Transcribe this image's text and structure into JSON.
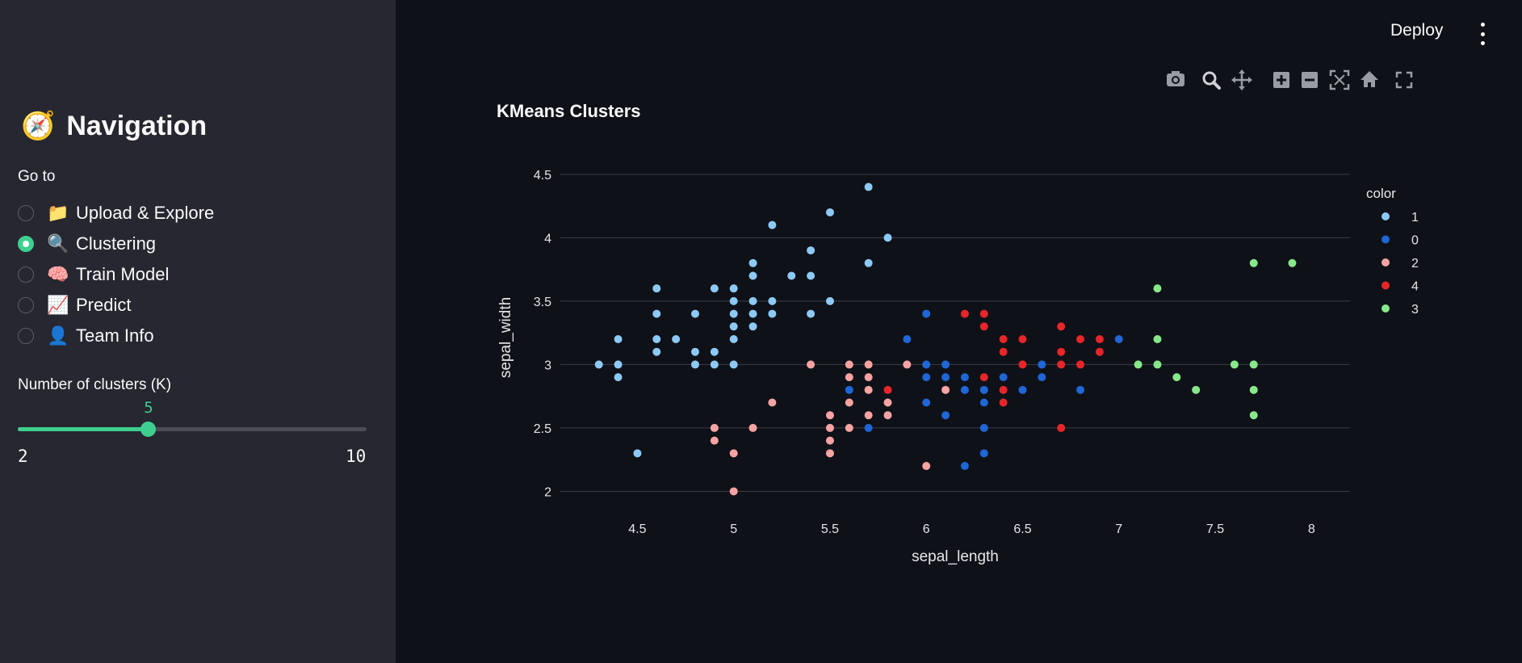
{
  "sidebar": {
    "title_icon": "compass-icon",
    "title": "Navigation",
    "goto_label": "Go to",
    "options": [
      {
        "emoji": "📁",
        "icon": "folder-icon",
        "label": "Upload & Explore",
        "checked": false
      },
      {
        "emoji": "🔍",
        "icon": "magnifier-icon",
        "label": "Clustering",
        "checked": true
      },
      {
        "emoji": "🧠",
        "icon": "brain-icon",
        "label": "Train Model",
        "checked": false
      },
      {
        "emoji": "📈",
        "icon": "chart-icon",
        "label": "Predict",
        "checked": false
      },
      {
        "emoji": "👤",
        "icon": "person-icon",
        "label": "Team Info",
        "checked": false
      }
    ],
    "slider": {
      "label": "Number of clusters (K)",
      "value": "5",
      "min": "2",
      "max": "10"
    }
  },
  "header": {
    "deploy_label": "Deploy",
    "menu_icon": "kebab-menu-icon"
  },
  "colors": {
    "accent": "#3ecf8e",
    "sidebar_bg": "#262730",
    "main_bg": "#0e1117"
  },
  "chart_data": {
    "type": "scatter",
    "title": "KMeans Clusters",
    "xlabel": "sepal_length",
    "ylabel": "sepal_width",
    "xlim": [
      4.1,
      8.2
    ],
    "ylim": [
      1.85,
      4.55
    ],
    "x_ticks": [
      4.5,
      5,
      5.5,
      6,
      6.5,
      7,
      7.5,
      8
    ],
    "x_tick_labels": [
      "4.5",
      "5",
      "5.5",
      "6",
      "6.5",
      "7",
      "7.5",
      "8"
    ],
    "y_ticks": [
      2,
      2.5,
      3,
      3.5,
      4,
      4.5
    ],
    "y_tick_labels": [
      "2",
      "2.5",
      "3",
      "3.5",
      "4",
      "4.5"
    ],
    "grid": "horizontal",
    "legend_title": "color",
    "legend_position": "right",
    "series": [
      {
        "name": "1",
        "color": "#8cc9f6",
        "points": [
          [
            4.3,
            3.0
          ],
          [
            4.4,
            3.2
          ],
          [
            4.4,
            3.0
          ],
          [
            4.4,
            2.9
          ],
          [
            4.5,
            2.3
          ],
          [
            4.6,
            3.6
          ],
          [
            4.6,
            3.4
          ],
          [
            4.6,
            3.2
          ],
          [
            4.6,
            3.1
          ],
          [
            4.7,
            3.2
          ],
          [
            4.8,
            3.4
          ],
          [
            4.8,
            3.1
          ],
          [
            4.8,
            3.0
          ],
          [
            4.9,
            3.6
          ],
          [
            4.9,
            3.1
          ],
          [
            4.9,
            3.0
          ],
          [
            5.0,
            3.6
          ],
          [
            5.0,
            3.5
          ],
          [
            5.0,
            3.4
          ],
          [
            5.0,
            3.3
          ],
          [
            5.0,
            3.2
          ],
          [
            5.0,
            3.0
          ],
          [
            5.1,
            3.8
          ],
          [
            5.1,
            3.7
          ],
          [
            5.1,
            3.5
          ],
          [
            5.1,
            3.4
          ],
          [
            5.1,
            3.3
          ],
          [
            5.2,
            4.1
          ],
          [
            5.2,
            3.5
          ],
          [
            5.2,
            3.4
          ],
          [
            5.3,
            3.7
          ],
          [
            5.4,
            3.9
          ],
          [
            5.4,
            3.7
          ],
          [
            5.4,
            3.4
          ],
          [
            5.5,
            4.2
          ],
          [
            5.5,
            3.5
          ],
          [
            5.7,
            4.4
          ],
          [
            5.7,
            3.8
          ],
          [
            5.8,
            4.0
          ]
        ]
      },
      {
        "name": "0",
        "color": "#1f66d6",
        "points": [
          [
            5.6,
            2.8
          ],
          [
            5.7,
            2.5
          ],
          [
            5.9,
            3.2
          ],
          [
            6.0,
            3.4
          ],
          [
            6.0,
            3.0
          ],
          [
            6.0,
            2.9
          ],
          [
            6.0,
            2.7
          ],
          [
            6.1,
            3.0
          ],
          [
            6.1,
            2.9
          ],
          [
            6.1,
            2.6
          ],
          [
            6.2,
            2.9
          ],
          [
            6.2,
            2.8
          ],
          [
            6.2,
            2.2
          ],
          [
            6.3,
            2.8
          ],
          [
            6.3,
            2.7
          ],
          [
            6.3,
            2.5
          ],
          [
            6.3,
            2.3
          ],
          [
            6.4,
            2.9
          ],
          [
            6.5,
            2.8
          ],
          [
            6.6,
            3.0
          ],
          [
            6.6,
            2.9
          ],
          [
            6.8,
            2.8
          ],
          [
            7.0,
            3.2
          ]
        ]
      },
      {
        "name": "2",
        "color": "#f7a3a3",
        "points": [
          [
            4.9,
            2.5
          ],
          [
            4.9,
            2.4
          ],
          [
            5.0,
            2.3
          ],
          [
            5.0,
            2.0
          ],
          [
            5.1,
            2.5
          ],
          [
            5.2,
            2.7
          ],
          [
            5.4,
            3.0
          ],
          [
            5.5,
            2.6
          ],
          [
            5.5,
            2.5
          ],
          [
            5.5,
            2.4
          ],
          [
            5.5,
            2.3
          ],
          [
            5.6,
            3.0
          ],
          [
            5.6,
            2.9
          ],
          [
            5.6,
            2.7
          ],
          [
            5.6,
            2.5
          ],
          [
            5.7,
            3.0
          ],
          [
            5.7,
            2.9
          ],
          [
            5.7,
            2.8
          ],
          [
            5.7,
            2.6
          ],
          [
            5.8,
            2.7
          ],
          [
            5.8,
            2.6
          ],
          [
            5.9,
            3.0
          ],
          [
            6.0,
            2.2
          ],
          [
            6.1,
            2.8
          ]
        ]
      },
      {
        "name": "4",
        "color": "#e8262a",
        "points": [
          [
            5.8,
            2.8
          ],
          [
            6.2,
            3.4
          ],
          [
            6.3,
            3.4
          ],
          [
            6.3,
            3.3
          ],
          [
            6.3,
            2.9
          ],
          [
            6.4,
            3.2
          ],
          [
            6.4,
            3.1
          ],
          [
            6.4,
            2.8
          ],
          [
            6.4,
            2.7
          ],
          [
            6.5,
            3.2
          ],
          [
            6.5,
            3.0
          ],
          [
            6.7,
            3.3
          ],
          [
            6.7,
            3.1
          ],
          [
            6.7,
            3.0
          ],
          [
            6.7,
            2.5
          ],
          [
            6.8,
            3.2
          ],
          [
            6.8,
            3.0
          ],
          [
            6.9,
            3.2
          ],
          [
            6.9,
            3.1
          ]
        ]
      },
      {
        "name": "3",
        "color": "#86e88a",
        "points": [
          [
            7.1,
            3.0
          ],
          [
            7.2,
            3.6
          ],
          [
            7.2,
            3.2
          ],
          [
            7.2,
            3.0
          ],
          [
            7.3,
            2.9
          ],
          [
            7.4,
            2.8
          ],
          [
            7.6,
            3.0
          ],
          [
            7.7,
            3.8
          ],
          [
            7.7,
            3.0
          ],
          [
            7.7,
            2.8
          ],
          [
            7.7,
            2.6
          ],
          [
            7.9,
            3.8
          ]
        ]
      }
    ]
  }
}
